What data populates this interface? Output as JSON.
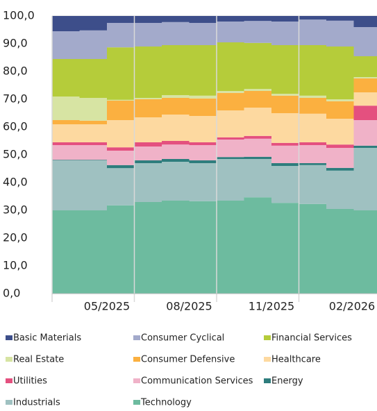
{
  "chart_data": {
    "type": "stacked_area",
    "categories": [
      null,
      null,
      "05/2025",
      null,
      null,
      "08/2025",
      null,
      null,
      "11/2025",
      null,
      null,
      "02/2026"
    ],
    "ylim": [
      0,
      100
    ],
    "yticks": [
      {
        "value": 0,
        "label": "0,0"
      },
      {
        "value": 10,
        "label": "10,0"
      },
      {
        "value": 20,
        "label": "20,0"
      },
      {
        "value": 30,
        "label": "30,0"
      },
      {
        "value": 40,
        "label": "40,0"
      },
      {
        "value": 50,
        "label": "50,0"
      },
      {
        "value": 60,
        "label": "60,0"
      },
      {
        "value": 70,
        "label": "70,0"
      },
      {
        "value": 80,
        "label": "80,0"
      },
      {
        "value": 90,
        "label": "90,0"
      },
      {
        "value": 100,
        "label": "100,0"
      }
    ],
    "grid": true,
    "legend": "bottom",
    "series": [
      {
        "name": "Basic Materials",
        "color": "#3d4e8a",
        "values": [
          5.5,
          5.2,
          2.5,
          2.5,
          2.2,
          2.5,
          2,
          1.8,
          2,
          1.3,
          1.7,
          4
        ]
      },
      {
        "name": "Consumer Cyclical",
        "color": "#a3aacb",
        "values": [
          10,
          10.3,
          8.8,
          8.5,
          8.3,
          8,
          7.5,
          7.9,
          8.5,
          9.2,
          9.3,
          10.5
        ]
      },
      {
        "name": "Financial Services",
        "color": "#b5cc3a",
        "values": [
          13.5,
          14,
          18.9,
          18.5,
          18,
          18.2,
          17.5,
          16.6,
          17.5,
          18.2,
          19,
          7.5
        ]
      },
      {
        "name": "Real Estate",
        "color": "#d7e4a3",
        "values": [
          8.5,
          8.2,
          0.3,
          0.5,
          1,
          1,
          0.7,
          0.7,
          0.7,
          0.8,
          0.7,
          0.5
        ]
      },
      {
        "name": "Consumer Defensive",
        "color": "#fbb040",
        "values": [
          1.5,
          1.3,
          7,
          6.5,
          6,
          6.3,
          6.3,
          6,
          6.3,
          5.7,
          6.3,
          5
        ]
      },
      {
        "name": "Healthcare",
        "color": "#fdd9a0",
        "values": [
          6.5,
          6.5,
          9.8,
          9,
          9.5,
          9.5,
          9.7,
          10.2,
          10.7,
          10.3,
          9.3,
          4.8
        ]
      },
      {
        "name": "Utilities",
        "color": "#e4507f",
        "values": [
          1,
          1,
          1.2,
          1.5,
          1.3,
          1,
          0.8,
          1,
          1,
          1,
          1.2,
          5.2
        ]
      },
      {
        "name": "Communication Services",
        "color": "#f0b2c8",
        "values": [
          5.3,
          5.3,
          5.2,
          5,
          5.2,
          5.5,
          6.3,
          6.5,
          6.3,
          6.5,
          7.2,
          9.2
        ]
      },
      {
        "name": "Energy",
        "color": "#2e7d7d",
        "values": [
          0.2,
          0.2,
          1.1,
          1,
          1,
          1,
          0.7,
          0.8,
          1,
          0.7,
          1,
          0.8
        ]
      },
      {
        "name": "Industrials",
        "color": "#9fc1c1",
        "values": [
          18,
          18,
          13.4,
          14,
          14,
          13.7,
          15,
          13.8,
          13.3,
          14,
          13.8,
          22.5
        ]
      },
      {
        "name": "Technology",
        "color": "#6dbb9f",
        "values": [
          30,
          30,
          31.8,
          33,
          33.5,
          33.3,
          33.5,
          34.7,
          32.7,
          32.3,
          30.5,
          30
        ]
      }
    ]
  }
}
